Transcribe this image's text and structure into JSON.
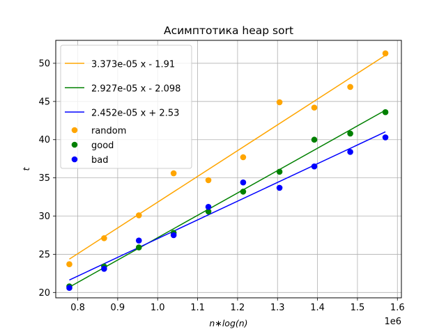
{
  "chart_data": {
    "type": "scatter",
    "title": "Асимптотика heap sort",
    "xlabel": "n∗log(n)",
    "ylabel": "t",
    "x_multiplier_label": "1e6",
    "xlim": [
      0.745,
      1.61
    ],
    "ylim": [
      19.3,
      53.0
    ],
    "xticks": [
      0.8,
      0.9,
      1.0,
      1.1,
      1.2,
      1.3,
      1.4,
      1.5,
      1.6
    ],
    "xtick_labels": [
      "0.8",
      "0.9",
      "1.0",
      "1.1",
      "1.2",
      "1.3",
      "1.4",
      "1.5",
      "1.6"
    ],
    "yticks": [
      20,
      25,
      30,
      35,
      40,
      45,
      50
    ],
    "ytick_labels": [
      "20",
      "25",
      "30",
      "35",
      "40",
      "45",
      "50"
    ],
    "grid": true,
    "legend_position": "upper-left",
    "x": [
      0.779,
      0.866,
      0.953,
      1.04,
      1.127,
      1.214,
      1.305,
      1.392,
      1.482,
      1.57
    ],
    "series": [
      {
        "name": "random",
        "color": "#ffa500",
        "values": [
          23.7,
          27.1,
          30.1,
          35.6,
          34.7,
          37.7,
          44.9,
          44.2,
          46.9,
          51.3
        ]
      },
      {
        "name": "good",
        "color": "#008000",
        "values": [
          20.8,
          23.4,
          25.9,
          27.8,
          30.6,
          33.2,
          35.8,
          40.0,
          40.8,
          43.6
        ]
      },
      {
        "name": "bad",
        "color": "#0000ff",
        "values": [
          20.6,
          23.1,
          26.8,
          27.5,
          31.2,
          34.4,
          33.7,
          36.5,
          38.4,
          40.3
        ]
      }
    ],
    "fit_lines": [
      {
        "label": "3.373e-05 x - 1.91",
        "color": "#ffa500",
        "slope": 3.373e-05,
        "intercept": -1.91
      },
      {
        "label": "2.927e-05 x - 2.098",
        "color": "#008000",
        "slope": 2.927e-05,
        "intercept": -2.098
      },
      {
        "label": "2.452e-05 x + 2.53",
        "color": "#0000ff",
        "slope": 2.452e-05,
        "intercept": 2.53
      }
    ]
  }
}
